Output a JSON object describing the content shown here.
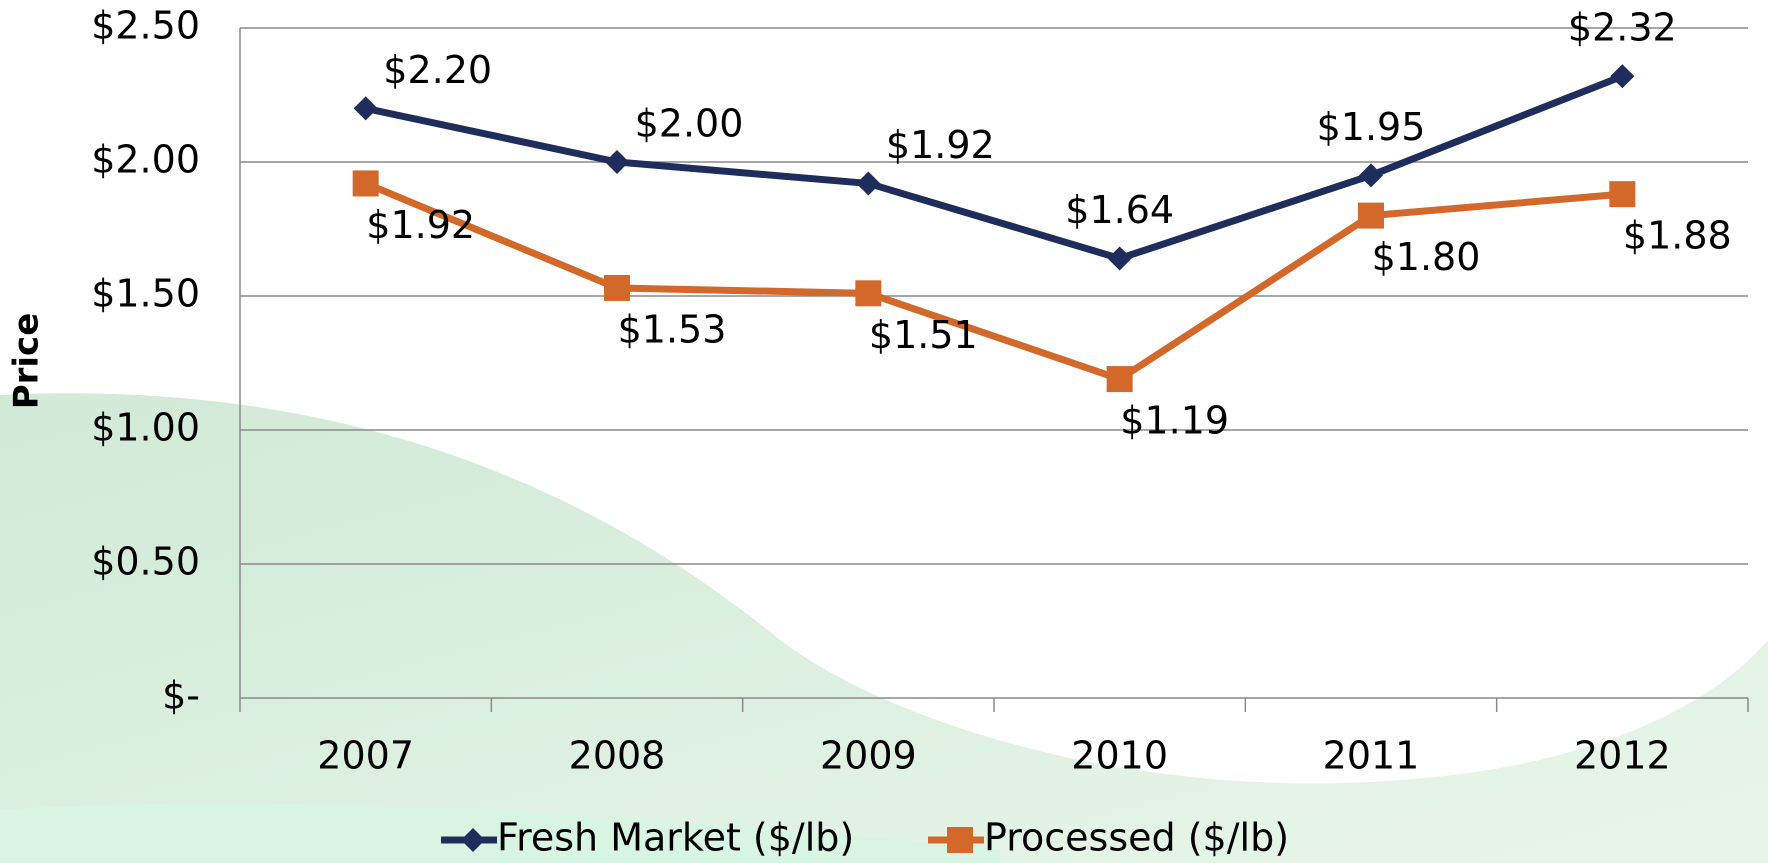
{
  "chart_data": {
    "type": "line",
    "y_label": "Price",
    "categories": [
      "2007",
      "2008",
      "2009",
      "2010",
      "2011",
      "2012"
    ],
    "series": [
      {
        "name": "Fresh Market ($/lb)",
        "color": "#1f2d5c",
        "marker": "diamond",
        "values": [
          2.2,
          2.0,
          1.92,
          1.64,
          1.95,
          2.32
        ],
        "value_labels": [
          "$2.20",
          "$2.00",
          "$1.92",
          "$1.64",
          "$1.95",
          "$2.32"
        ]
      },
      {
        "name": "Processed ($/lb)",
        "color": "#d2692a",
        "marker": "square",
        "values": [
          1.92,
          1.53,
          1.51,
          1.19,
          1.8,
          1.88
        ],
        "value_labels": [
          "$1.92",
          "$1.53",
          "$1.51",
          "$1.19",
          "$1.80",
          "$1.88"
        ]
      }
    ],
    "ylim": [
      0,
      2.5
    ],
    "yticks": [
      {
        "value": 0,
        "label": "$-"
      },
      {
        "value": 0.5,
        "label": "$0.50"
      },
      {
        "value": 1,
        "label": "$1.00"
      },
      {
        "value": 1.5,
        "label": "$1.50"
      },
      {
        "value": 2,
        "label": "$2.00"
      },
      {
        "value": 2.5,
        "label": "$2.50"
      }
    ],
    "grid": true,
    "legend": "bottom"
  }
}
